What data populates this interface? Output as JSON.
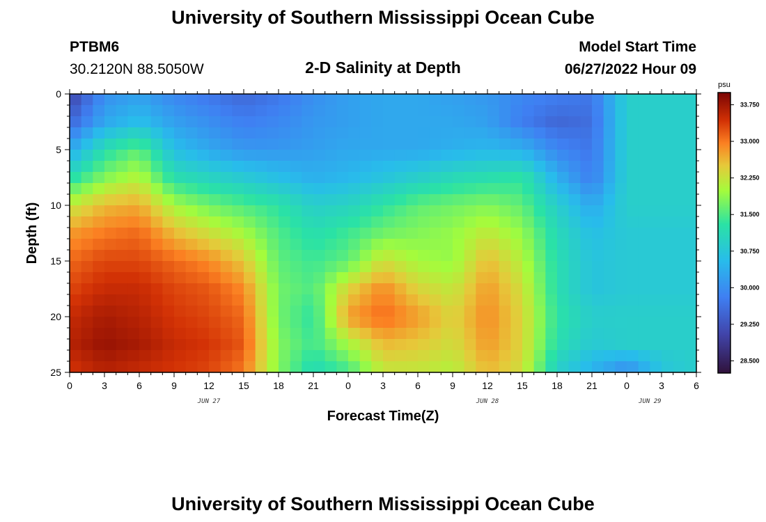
{
  "header": {
    "title": "University of Southern Mississippi Ocean Cube",
    "station_name": "PTBM6",
    "station_coords": "30.2120N  88.5050W",
    "chart_title": "2-D Salinity at Depth",
    "model_start_label": "Model Start Time",
    "model_start_value": "06/27/2022 Hour 09"
  },
  "footer": {
    "title": "University of Southern Mississippi Ocean Cube"
  },
  "chart_data": {
    "type": "heatmap",
    "title": "2-D Salinity at Depth",
    "xlabel": "Forecast Time(Z)",
    "ylabel": "Depth (ft)",
    "x_range_hours": [
      0,
      54
    ],
    "y_range_ft": [
      0,
      25
    ],
    "x_tick_labels": [
      "0",
      "3",
      "6",
      "9",
      "12",
      "15",
      "18",
      "21",
      "0",
      "3",
      "6",
      "9",
      "12",
      "15",
      "18",
      "21",
      "0",
      "3",
      "6"
    ],
    "y_tick_labels": [
      "0",
      "5",
      "10",
      "15",
      "20",
      "25"
    ],
    "date_labels": [
      {
        "label": "JUN 27",
        "hour": 12
      },
      {
        "label": "JUN 28",
        "hour": 36
      },
      {
        "label": "JUN 29",
        "hour": 50
      }
    ],
    "colorbar": {
      "unit": "psu",
      "range": [
        28.25,
        34.0
      ],
      "tick_labels": [
        "33.750",
        "33.000",
        "32.250",
        "31.500",
        "30.750",
        "30.000",
        "29.250",
        "28.500"
      ],
      "tick_values": [
        33.75,
        33.0,
        32.25,
        31.5,
        30.75,
        30.0,
        29.25,
        28.5
      ]
    },
    "grid": false,
    "legend_position": "right",
    "salinity_psu_estimated": {
      "hours": [
        0,
        3,
        6,
        9,
        12,
        15,
        18,
        21,
        24,
        27,
        30,
        33,
        36,
        39,
        42,
        45,
        48,
        51,
        54
      ],
      "depths_ft": [
        0,
        2.5,
        5,
        7.5,
        10,
        12.5,
        15,
        17.5,
        20,
        22.5,
        25
      ],
      "values": [
        [
          29.0,
          30.0,
          30.2,
          29.9,
          29.7,
          29.5,
          29.7,
          30.0,
          30.2,
          30.3,
          30.3,
          30.2,
          30.1,
          29.9,
          29.8,
          29.7,
          30.9,
          30.9,
          30.9
        ],
        [
          29.5,
          30.3,
          30.6,
          30.2,
          30.0,
          29.8,
          29.9,
          30.1,
          30.2,
          30.3,
          30.3,
          30.3,
          30.2,
          29.8,
          29.5,
          29.6,
          30.9,
          30.9,
          30.9
        ],
        [
          30.3,
          31.2,
          31.6,
          30.6,
          30.3,
          30.1,
          30.1,
          30.2,
          30.3,
          30.3,
          30.3,
          30.4,
          30.5,
          30.4,
          29.9,
          29.7,
          30.9,
          30.9,
          30.9
        ],
        [
          31.2,
          31.8,
          32.1,
          31.2,
          31.0,
          30.8,
          30.6,
          30.4,
          30.5,
          30.7,
          30.9,
          31.1,
          31.2,
          31.3,
          30.4,
          29.8,
          30.9,
          30.9,
          30.9
        ],
        [
          32.2,
          32.6,
          32.7,
          32.0,
          31.7,
          31.5,
          31.3,
          30.9,
          31.0,
          31.3,
          31.6,
          31.7,
          31.8,
          31.6,
          30.9,
          30.3,
          30.9,
          30.9,
          30.9
        ],
        [
          32.8,
          33.0,
          33.1,
          32.6,
          32.3,
          32.0,
          31.5,
          31.2,
          31.4,
          31.7,
          31.8,
          31.9,
          32.2,
          31.9,
          31.1,
          30.6,
          30.8,
          30.8,
          30.8
        ],
        [
          33.1,
          33.3,
          33.3,
          33.1,
          32.9,
          32.5,
          31.6,
          31.4,
          31.6,
          32.3,
          32.0,
          31.9,
          32.6,
          32.1,
          31.2,
          30.7,
          30.8,
          30.8,
          30.8
        ],
        [
          33.3,
          33.5,
          33.5,
          33.3,
          33.2,
          32.9,
          31.7,
          31.5,
          32.4,
          32.9,
          32.4,
          32.2,
          32.8,
          32.3,
          31.2,
          30.7,
          30.8,
          30.8,
          30.8
        ],
        [
          33.5,
          33.7,
          33.6,
          33.4,
          33.3,
          33.1,
          31.7,
          31.3,
          32.8,
          33.1,
          32.8,
          32.4,
          32.9,
          32.4,
          31.3,
          30.9,
          30.9,
          30.9,
          30.9
        ],
        [
          33.6,
          33.8,
          33.7,
          33.5,
          33.4,
          33.2,
          31.8,
          31.4,
          32.0,
          32.6,
          32.5,
          32.3,
          32.8,
          32.4,
          31.2,
          30.8,
          30.9,
          30.9,
          30.9
        ],
        [
          33.4,
          33.6,
          33.5,
          33.4,
          33.3,
          33.0,
          31.8,
          31.1,
          31.4,
          32.2,
          32.2,
          32.1,
          32.6,
          32.3,
          30.9,
          30.4,
          29.9,
          30.7,
          30.9
        ]
      ]
    }
  },
  "colors": {
    "background": "#ffffff",
    "axis": "#000000"
  }
}
